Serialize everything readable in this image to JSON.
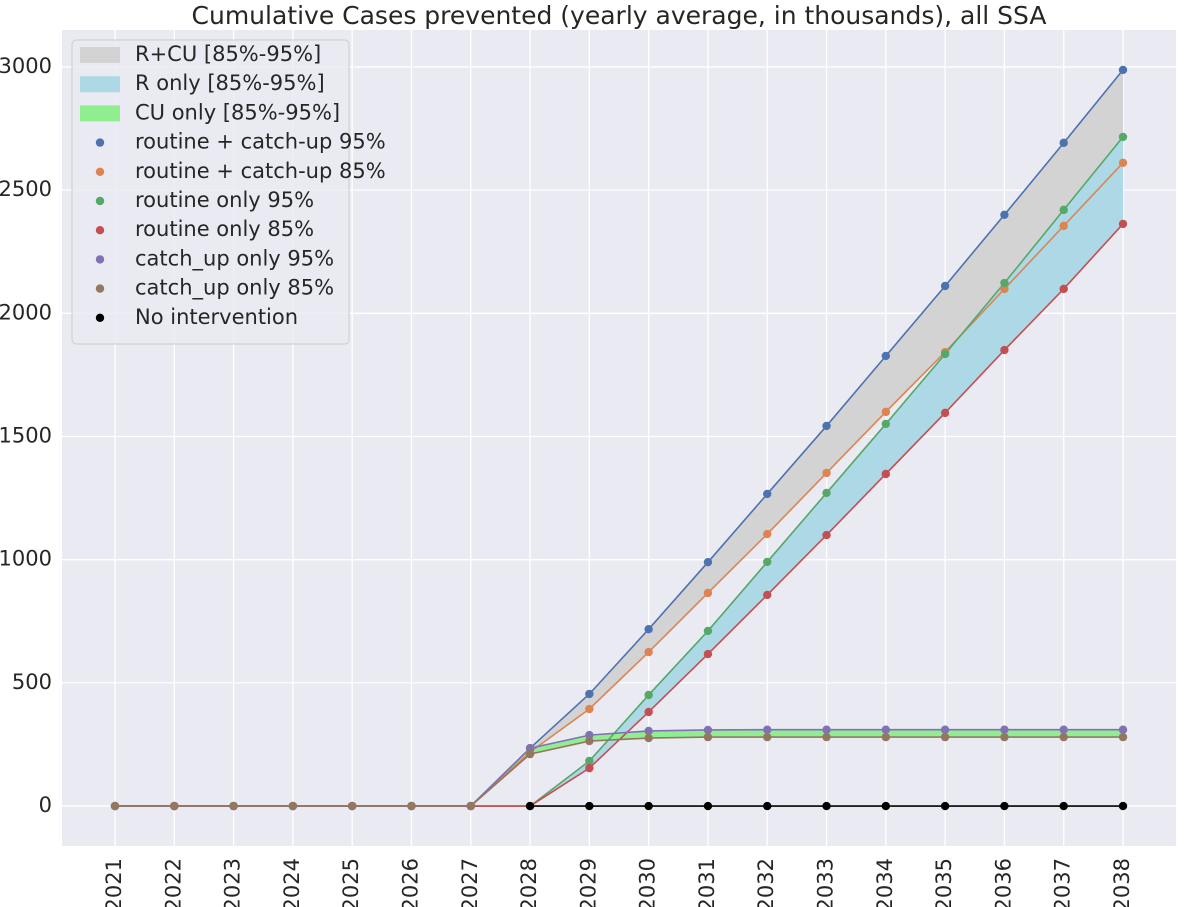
{
  "chart_data": {
    "type": "line",
    "title": "Cumulative Cases prevented (yearly average, in thousands), all SSA",
    "categories": [
      "2021",
      "2022",
      "2023",
      "2024",
      "2025",
      "2026",
      "2027",
      "2028",
      "2029",
      "2030",
      "2031",
      "2032",
      "2033",
      "2034",
      "2035",
      "2036",
      "2037",
      "2038"
    ],
    "ylim": [
      -162,
      3150
    ],
    "yticks": [
      0,
      500,
      1000,
      1500,
      2000,
      2500,
      3000
    ],
    "grid": true,
    "legend": "upper left",
    "bands": [
      {
        "name": "R+CU [85%-95%]",
        "color": "#d3d3d3"
      },
      {
        "name": "R only [85%-95%]",
        "color": "#add8e6"
      },
      {
        "name": "CU only [85%-95%]",
        "color": "#90ee90"
      }
    ],
    "series": [
      {
        "name": "routine + catch-up 95%",
        "color": "#4c72b0",
        "values": [
          0,
          0,
          0,
          0,
          0,
          0,
          0,
          235,
          455,
          718,
          990,
          1267,
          1543,
          1827,
          2111,
          2400,
          2692,
          2988
        ]
      },
      {
        "name": "routine + catch-up 85%",
        "color": "#dd8452",
        "values": [
          0,
          0,
          0,
          0,
          0,
          0,
          0,
          219,
          394,
          625,
          865,
          1104,
          1352,
          1600,
          1843,
          2099,
          2355,
          2611
        ]
      },
      {
        "name": "routine only 95%",
        "color": "#55a868",
        "values": [
          0,
          0,
          0,
          0,
          0,
          0,
          0,
          0,
          183,
          451,
          711,
          991,
          1271,
          1551,
          1835,
          2123,
          2420,
          2716
        ]
      },
      {
        "name": "routine only 85%",
        "color": "#c44e52",
        "values": [
          0,
          0,
          0,
          0,
          0,
          0,
          0,
          0,
          154,
          382,
          617,
          857,
          1100,
          1348,
          1596,
          1851,
          2099,
          2363
        ]
      },
      {
        "name": "catch_up only 95%",
        "color": "#8172b3",
        "values": [
          0,
          0,
          0,
          0,
          0,
          0,
          0,
          235,
          288,
          305,
          309,
          310,
          310,
          310,
          310,
          310,
          310,
          310
        ]
      },
      {
        "name": "catch_up only 85%",
        "color": "#937860",
        "values": [
          0,
          0,
          0,
          0,
          0,
          0,
          0,
          211,
          264,
          276,
          280,
          280,
          280,
          280,
          280,
          280,
          280,
          280
        ]
      },
      {
        "name": "No intervention",
        "color": "#000000",
        "values": [
          null,
          null,
          null,
          null,
          null,
          null,
          null,
          0,
          0,
          0,
          0,
          0,
          0,
          0,
          0,
          0,
          0,
          0
        ]
      }
    ]
  }
}
